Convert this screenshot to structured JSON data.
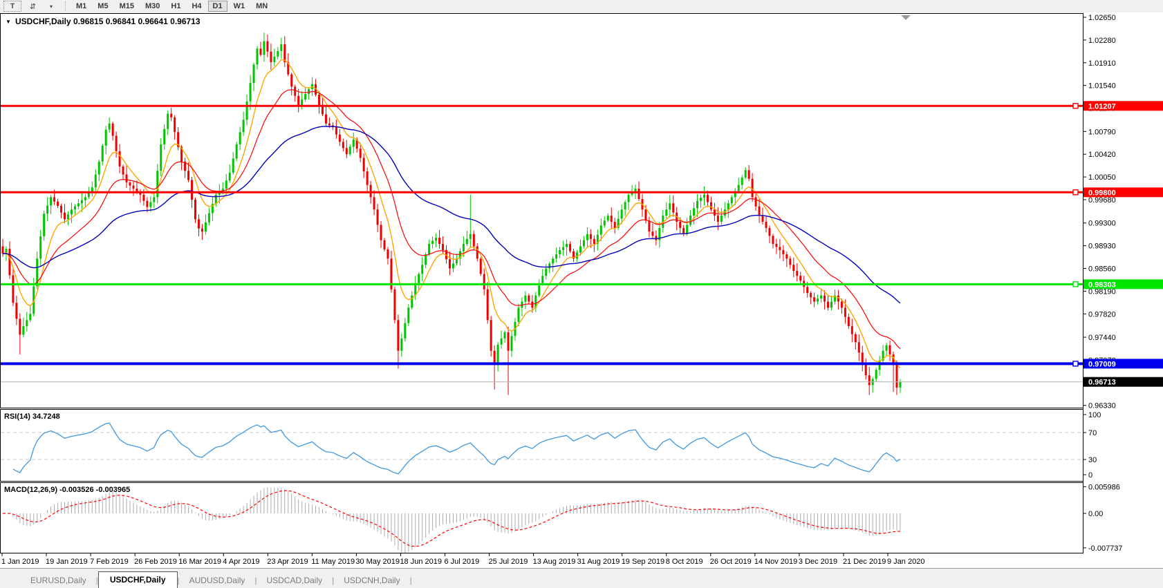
{
  "toolbar": {
    "text_tool_label": "T",
    "cycle_icon": "symbols-cycle-icon",
    "dropdown_caret": "▾",
    "timeframes": [
      "M1",
      "M5",
      "M15",
      "M30",
      "H1",
      "H4",
      "D1",
      "W1",
      "MN"
    ],
    "active_timeframe": "D1"
  },
  "chart": {
    "title_dropdown_glyph": "▼",
    "title_text": "USDCHF,Daily 0.96815 0.96841 0.96641 0.96713",
    "title": {
      "symbol": "USDCHF,Daily",
      "open": "0.96815",
      "high": "0.96841",
      "low": "0.96641",
      "close": "0.96713"
    },
    "price_axis_ticks": [
      "1.02650",
      "1.02280",
      "1.01910",
      "1.01540",
      "1.01170",
      "1.00790",
      "1.00420",
      "1.00050",
      "0.99680",
      "0.99300",
      "0.98930",
      "0.98560",
      "0.98190",
      "0.97820",
      "0.97440",
      "0.97070",
      "0.96700",
      "0.96330"
    ],
    "date_axis": [
      "1 Jan 2019",
      "19 Jan 2019",
      "7 Feb 2019",
      "26 Feb 2019",
      "16 Mar 2019",
      "4 Apr 2019",
      "23 Apr 2019",
      "11 May 2019",
      "30 May 2019",
      "18 Jun 2019",
      "6 Jul 2019",
      "25 Jul 2019",
      "13 Aug 2019",
      "31 Aug 2019",
      "19 Sep 2019",
      "8 Oct 2019",
      "26 Oct 2019",
      "14 Nov 2019",
      "3 Dec 2019",
      "21 Dec 2019",
      "9 Jan 2020"
    ]
  },
  "rsi_panel": {
    "label": "RSI(14) 34.7248",
    "ticks": [
      "100",
      "70",
      "30",
      "0"
    ],
    "level_lines": [
      70,
      30
    ]
  },
  "macd_panel": {
    "label": "MACD(12,26,9) -0.003526 -0.003965",
    "ticks": [
      "0.005986",
      "0.00",
      "-0.007737"
    ]
  },
  "tabs": {
    "items": [
      {
        "label": "EURUSD,Daily",
        "active": false
      },
      {
        "label": "USDCHF,Daily",
        "active": true
      },
      {
        "label": "AUDUSD,Daily",
        "active": false
      },
      {
        "label": "USDCAD,Daily",
        "active": false
      },
      {
        "label": "USDCNH,Daily",
        "active": false
      }
    ]
  },
  "colors": {
    "candle_up": "#00C400",
    "candle_down": "#EE0000",
    "ma_fast": "#FFA500",
    "ma_mid": "#FF0000",
    "ma_slow": "#0000BB",
    "level_red": "#FF0000",
    "level_green": "#00E400",
    "level_blue": "#0000F0",
    "current_price_line": "#B4B4B4",
    "current_price_label_bg": "#000000",
    "rsi_line": "#3F97DF",
    "rsi_dash": "#C9C9C9",
    "macd_hist": "#ABABAB",
    "macd_signal": "#FF0000",
    "panel_border": "#000000",
    "shift_marker": "#9A9A9A"
  },
  "chart_data": {
    "type": "candlestick",
    "symbol": "USDCHF",
    "timeframe": "Daily",
    "title": "USDCHF,Daily",
    "ohlc_display": {
      "open": 0.96815,
      "high": 0.96841,
      "low": 0.96641,
      "close": 0.96713
    },
    "x_range_dates": [
      "1 Jan 2019",
      "9 Jan 2020"
    ],
    "y_range": [
      0.9629,
      1.0272
    ],
    "num_candles": 262,
    "horizontal_levels": [
      {
        "value": 1.01207,
        "label": "1.01207",
        "color": "#FF0000",
        "width": 3
      },
      {
        "value": 0.998,
        "label": "0.99800",
        "color": "#FF0000",
        "width": 3
      },
      {
        "value": 0.98303,
        "label": "0.98303",
        "color": "#00E400",
        "width": 3
      },
      {
        "value": 0.97009,
        "label": "0.97009",
        "color": "#0000F0",
        "width": 4
      }
    ],
    "current_price": {
      "value": 0.96713,
      "label": "0.96713"
    },
    "indicators": {
      "rsi": {
        "period": 14,
        "current": 34.7248,
        "levels": [
          70,
          30
        ],
        "scale": [
          0,
          100
        ]
      },
      "macd": {
        "fast": 12,
        "slow": 26,
        "signal": 9,
        "current": -0.003526,
        "signal_current": -0.003965,
        "scale": [
          -0.007737,
          0.005986
        ]
      },
      "moving_averages": [
        {
          "est_period": 8,
          "color": "#FFA500"
        },
        {
          "est_period": 20,
          "color": "#FF0000"
        },
        {
          "est_period": 55,
          "color": "#0000BB"
        }
      ]
    },
    "close_anchors": [
      [
        0,
        0.988
      ],
      [
        1,
        0.9888
      ],
      [
        2,
        0.9845
      ],
      [
        3,
        0.98
      ],
      [
        5,
        0.9748
      ],
      [
        6,
        0.9762
      ],
      [
        8,
        0.9782
      ],
      [
        10,
        0.9872
      ],
      [
        12,
        0.9945
      ],
      [
        14,
        0.9972
      ],
      [
        16,
        0.9958
      ],
      [
        18,
        0.9936
      ],
      [
        20,
        0.9952
      ],
      [
        22,
        0.9962
      ],
      [
        24,
        0.9972
      ],
      [
        26,
        0.9988
      ],
      [
        28,
        1.003
      ],
      [
        30,
        1.0082
      ],
      [
        31,
        1.0092
      ],
      [
        32,
        1.0072
      ],
      [
        34,
        1.0022
      ],
      [
        36,
        0.9996
      ],
      [
        38,
        0.9986
      ],
      [
        40,
        0.9976
      ],
      [
        42,
        0.9956
      ],
      [
        44,
        0.9972
      ],
      [
        46,
        1.0058
      ],
      [
        48,
        1.0108
      ],
      [
        49,
        1.0102
      ],
      [
        50,
        1.0078
      ],
      [
        52,
        1.003
      ],
      [
        54,
        1.0
      ],
      [
        56,
        0.9936
      ],
      [
        57,
        0.9921
      ],
      [
        58,
        0.9916
      ],
      [
        60,
        0.9946
      ],
      [
        62,
        0.9976
      ],
      [
        64,
        0.9986
      ],
      [
        66,
        1.0012
      ],
      [
        68,
        1.0058
      ],
      [
        70,
        1.0098
      ],
      [
        72,
        1.0158
      ],
      [
        73,
        1.0188
      ],
      [
        74,
        1.0214
      ],
      [
        75,
        1.0204
      ],
      [
        76,
        1.0226
      ],
      [
        78,
        1.0192
      ],
      [
        80,
        1.021
      ],
      [
        81,
        1.0221
      ],
      [
        82,
        1.0192
      ],
      [
        84,
        1.0152
      ],
      [
        86,
        1.0122
      ],
      [
        88,
        1.014
      ],
      [
        90,
        1.0156
      ],
      [
        92,
        1.0122
      ],
      [
        94,
        1.0092
      ],
      [
        96,
        1.0086
      ],
      [
        98,
        1.0062
      ],
      [
        100,
        1.0042
      ],
      [
        102,
        1.0066
      ],
      [
        104,
        1.0036
      ],
      [
        106,
        0.9992
      ],
      [
        108,
        0.9952
      ],
      [
        110,
        0.9902
      ],
      [
        112,
        0.9872
      ],
      [
        113,
        0.9822
      ],
      [
        114,
        0.9772
      ],
      [
        115,
        0.9722
      ],
      [
        116,
        0.9742
      ],
      [
        118,
        0.9792
      ],
      [
        120,
        0.9832
      ],
      [
        122,
        0.9862
      ],
      [
        124,
        0.9896
      ],
      [
        126,
        0.9906
      ],
      [
        128,
        0.9886
      ],
      [
        130,
        0.9856
      ],
      [
        132,
        0.9872
      ],
      [
        134,
        0.9896
      ],
      [
        136,
        0.9912
      ],
      [
        138,
        0.9872
      ],
      [
        140,
        0.9822
      ],
      [
        141,
        0.9772
      ],
      [
        142,
        0.9722
      ],
      [
        143,
        0.9702
      ],
      [
        144,
        0.9732
      ],
      [
        146,
        0.9752
      ],
      [
        147,
        0.9722
      ],
      [
        148,
        0.9746
      ],
      [
        150,
        0.9792
      ],
      [
        152,
        0.9812
      ],
      [
        154,
        0.9792
      ],
      [
        156,
        0.9832
      ],
      [
        158,
        0.9856
      ],
      [
        160,
        0.9872
      ],
      [
        162,
        0.9886
      ],
      [
        164,
        0.9896
      ],
      [
        166,
        0.9872
      ],
      [
        168,
        0.9892
      ],
      [
        170,
        0.9912
      ],
      [
        172,
        0.9896
      ],
      [
        174,
        0.9926
      ],
      [
        176,
        0.9942
      ],
      [
        178,
        0.9922
      ],
      [
        180,
        0.9952
      ],
      [
        182,
        0.9976
      ],
      [
        184,
        0.9986
      ],
      [
        186,
        0.9952
      ],
      [
        188,
        0.9916
      ],
      [
        190,
        0.9902
      ],
      [
        192,
        0.9942
      ],
      [
        194,
        0.9962
      ],
      [
        196,
        0.9932
      ],
      [
        198,
        0.9912
      ],
      [
        200,
        0.9942
      ],
      [
        202,
        0.9966
      ],
      [
        204,
        0.9976
      ],
      [
        206,
        0.9952
      ],
      [
        208,
        0.9932
      ],
      [
        210,
        0.9952
      ],
      [
        212,
        0.9972
      ],
      [
        214,
        0.9992
      ],
      [
        216,
        1.0016
      ],
      [
        217,
        1.0002
      ],
      [
        218,
        0.9972
      ],
      [
        220,
        0.9942
      ],
      [
        222,
        0.9922
      ],
      [
        224,
        0.9896
      ],
      [
        226,
        0.9886
      ],
      [
        228,
        0.9872
      ],
      [
        230,
        0.9852
      ],
      [
        232,
        0.9836
      ],
      [
        234,
        0.9816
      ],
      [
        236,
        0.9802
      ],
      [
        238,
        0.9812
      ],
      [
        240,
        0.9792
      ],
      [
        242,
        0.9812
      ],
      [
        244,
        0.9792
      ],
      [
        246,
        0.9762
      ],
      [
        248,
        0.9736
      ],
      [
        250,
        0.9702
      ],
      [
        251,
        0.9682
      ],
      [
        252,
        0.9666
      ],
      [
        253,
        0.9676
      ],
      [
        254,
        0.9691
      ],
      [
        255,
        0.9706
      ],
      [
        256,
        0.9722
      ],
      [
        257,
        0.9731
      ],
      [
        258,
        0.9716
      ],
      [
        259,
        0.9701
      ],
      [
        260,
        0.9662
      ],
      [
        261,
        0.96713
      ]
    ],
    "wick_overrides": {
      "5": {
        "low": 0.9716
      },
      "76": {
        "high": 1.024
      },
      "81": {
        "high": 1.0232
      },
      "115": {
        "low": 0.9693
      },
      "136": {
        "high": 0.9976
      },
      "143": {
        "low": 0.9659
      },
      "147": {
        "low": 0.965
      },
      "252": {
        "low": 0.965
      },
      "259": {
        "low": 0.9655
      },
      "260": {
        "low": 0.965
      }
    }
  }
}
